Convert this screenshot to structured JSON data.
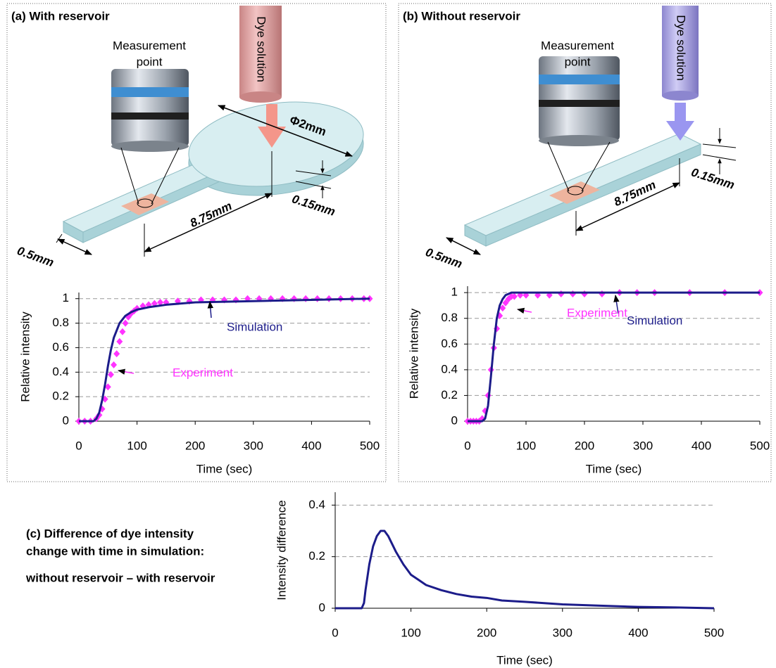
{
  "panels": [
    {
      "title": "(a) With reservoir",
      "labels": {
        "measurement": [
          "Measurement",
          "point"
        ],
        "dye": "Dye solution",
        "diameter": "Φ2mm",
        "depth": "0.15mm",
        "length": "8.75mm",
        "width": "0.5mm"
      }
    },
    {
      "title": "(b) Without reservoir",
      "labels": {
        "measurement": [
          "Measurement",
          "point"
        ],
        "dye": "Dye solution",
        "depth": "0.15mm",
        "length": "8.75mm",
        "width": "0.5mm"
      }
    }
  ],
  "chart_data": [
    {
      "type": "line",
      "xlabel": "Time (sec)",
      "ylabel": "Relative intensity",
      "xlim": [
        0,
        500
      ],
      "xticks": [
        0,
        100,
        200,
        300,
        400,
        500
      ],
      "ylim": [
        0,
        1.05
      ],
      "yticks": [
        0,
        0.2,
        0.4,
        0.6,
        0.8,
        1
      ],
      "grid": true,
      "series": [
        {
          "name": "Experiment",
          "color": "#ff33ff",
          "marker": "diamond",
          "x": [
            0,
            10,
            20,
            30,
            35,
            40,
            45,
            50,
            55,
            60,
            65,
            70,
            75,
            80,
            85,
            90,
            95,
            100,
            110,
            120,
            130,
            140,
            150,
            170,
            190,
            210,
            230,
            250,
            270,
            290,
            310,
            330,
            350,
            370,
            390,
            410,
            430,
            450,
            470,
            490,
            500
          ],
          "values": [
            0,
            0,
            0,
            0.02,
            0.05,
            0.1,
            0.18,
            0.28,
            0.38,
            0.46,
            0.55,
            0.65,
            0.73,
            0.8,
            0.85,
            0.88,
            0.9,
            0.92,
            0.94,
            0.95,
            0.96,
            0.97,
            0.97,
            0.98,
            0.98,
            0.99,
            0.99,
            0.99,
            0.99,
            1,
            1,
            1,
            1,
            1,
            1,
            1,
            1,
            1,
            1,
            1,
            1
          ]
        },
        {
          "name": "Simulation",
          "color": "#1c1c8a",
          "marker": "none",
          "x": [
            0,
            25,
            30,
            35,
            40,
            45,
            50,
            55,
            60,
            70,
            80,
            90,
            100,
            120,
            150,
            200,
            250,
            300,
            400,
            500
          ],
          "values": [
            0,
            0,
            0.02,
            0.07,
            0.17,
            0.3,
            0.45,
            0.58,
            0.68,
            0.8,
            0.86,
            0.89,
            0.91,
            0.93,
            0.95,
            0.97,
            0.975,
            0.98,
            0.99,
            1
          ]
        }
      ]
    },
    {
      "type": "line",
      "xlabel": "Time (sec)",
      "ylabel": "Relative intensity",
      "xlim": [
        0,
        500
      ],
      "xticks": [
        0,
        100,
        200,
        300,
        400,
        500
      ],
      "ylim": [
        0,
        1.05
      ],
      "yticks": [
        0,
        0.2,
        0.4,
        0.6,
        0.8,
        1
      ],
      "grid": true,
      "series": [
        {
          "name": "Experiment",
          "color": "#ff33ff",
          "marker": "diamond",
          "x": [
            0,
            5,
            10,
            15,
            20,
            25,
            30,
            35,
            40,
            45,
            50,
            55,
            60,
            65,
            70,
            75,
            80,
            90,
            100,
            120,
            140,
            160,
            180,
            200,
            230,
            260,
            290,
            320,
            380,
            440,
            500
          ],
          "values": [
            0,
            0,
            0,
            0,
            0,
            0.02,
            0.08,
            0.2,
            0.4,
            0.57,
            0.72,
            0.82,
            0.88,
            0.92,
            0.95,
            0.97,
            0.97,
            0.98,
            0.98,
            0.98,
            0.98,
            0.99,
            0.99,
            0.99,
            0.99,
            1,
            1,
            1,
            1,
            1,
            1
          ]
        },
        {
          "name": "Simulation",
          "color": "#1c1c8a",
          "marker": "none",
          "x": [
            0,
            25,
            30,
            35,
            40,
            45,
            50,
            55,
            60,
            65,
            70,
            75,
            80,
            100,
            500
          ],
          "values": [
            0,
            0,
            0.02,
            0.12,
            0.35,
            0.6,
            0.8,
            0.9,
            0.95,
            0.98,
            0.99,
            1,
            1,
            1,
            1
          ]
        }
      ]
    },
    {
      "type": "line",
      "title_lines": [
        "(c) Difference of dye intensity",
        "change with time in simulation:",
        "without reservoir – with reservoir"
      ],
      "xlabel": "Time (sec)",
      "ylabel": "Intensity difference",
      "xlim": [
        0,
        500
      ],
      "xticks": [
        0,
        100,
        200,
        300,
        400,
        500
      ],
      "ylim": [
        0,
        0.45
      ],
      "yticks": [
        0,
        0.2,
        0.4
      ],
      "grid": true,
      "series": [
        {
          "color": "#1c1c8a",
          "marker": "none",
          "x": [
            0,
            35,
            38,
            40,
            45,
            50,
            55,
            60,
            65,
            70,
            75,
            80,
            90,
            100,
            110,
            120,
            140,
            160,
            180,
            200,
            220,
            250,
            300,
            350,
            400,
            450,
            500
          ],
          "values": [
            0,
            0,
            0.02,
            0.07,
            0.17,
            0.24,
            0.28,
            0.3,
            0.3,
            0.28,
            0.25,
            0.22,
            0.17,
            0.13,
            0.11,
            0.09,
            0.07,
            0.055,
            0.045,
            0.04,
            0.03,
            0.025,
            0.015,
            0.01,
            0.005,
            0.003,
            0
          ]
        }
      ]
    }
  ]
}
